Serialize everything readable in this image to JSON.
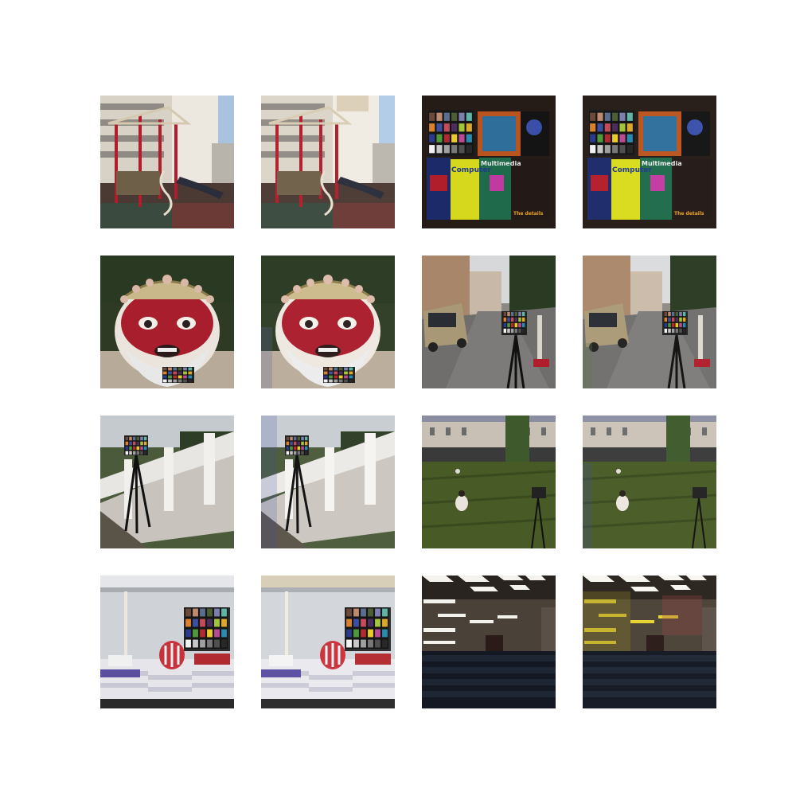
{
  "figure": {
    "layout": "4x4 image grid, pairs of original / processed photos",
    "tiles": [
      {
        "row": 0,
        "col": 0,
        "scene": "playground",
        "variant": "original"
      },
      {
        "row": 0,
        "col": 1,
        "scene": "playground",
        "variant": "processed"
      },
      {
        "row": 0,
        "col": 2,
        "scene": "color-chart-books",
        "variant": "original"
      },
      {
        "row": 0,
        "col": 3,
        "scene": "color-chart-books",
        "variant": "processed"
      },
      {
        "row": 1,
        "col": 0,
        "scene": "mask-face",
        "variant": "original"
      },
      {
        "row": 1,
        "col": 1,
        "scene": "mask-face",
        "variant": "processed"
      },
      {
        "row": 1,
        "col": 2,
        "scene": "street-van",
        "variant": "original"
      },
      {
        "row": 1,
        "col": 3,
        "scene": "street-van",
        "variant": "processed"
      },
      {
        "row": 2,
        "col": 0,
        "scene": "white-railing",
        "variant": "original"
      },
      {
        "row": 2,
        "col": 1,
        "scene": "white-railing",
        "variant": "processed"
      },
      {
        "row": 2,
        "col": 2,
        "scene": "lawn-courtyard",
        "variant": "original"
      },
      {
        "row": 2,
        "col": 3,
        "scene": "lawn-courtyard",
        "variant": "processed"
      },
      {
        "row": 3,
        "col": 0,
        "scene": "shelf-pillow",
        "variant": "original"
      },
      {
        "row": 3,
        "col": 1,
        "scene": "shelf-pillow",
        "variant": "processed"
      },
      {
        "row": 3,
        "col": 2,
        "scene": "auditorium",
        "variant": "original"
      },
      {
        "row": 3,
        "col": 3,
        "scene": "auditorium",
        "variant": "processed"
      }
    ]
  },
  "book_labels": {
    "computer": "Computer",
    "multimedia": "Multimedia",
    "details": "The details"
  },
  "colors": {
    "background": "#ffffff",
    "chart_patches": [
      "#6b4a3a",
      "#c08a70",
      "#5a6f90",
      "#4c5e34",
      "#7d7fb0",
      "#5fb6a6",
      "#d9822b",
      "#3e4fa0",
      "#c24c5a",
      "#4a2e5e",
      "#a4c43a",
      "#e0a82a",
      "#2b3a8a",
      "#4c9a3c",
      "#b02a30",
      "#e8cc2a",
      "#bb4a94",
      "#2a8ab0",
      "#f2f2f2",
      "#c8c8c8",
      "#a0a0a0",
      "#787878",
      "#505050",
      "#282828"
    ]
  }
}
